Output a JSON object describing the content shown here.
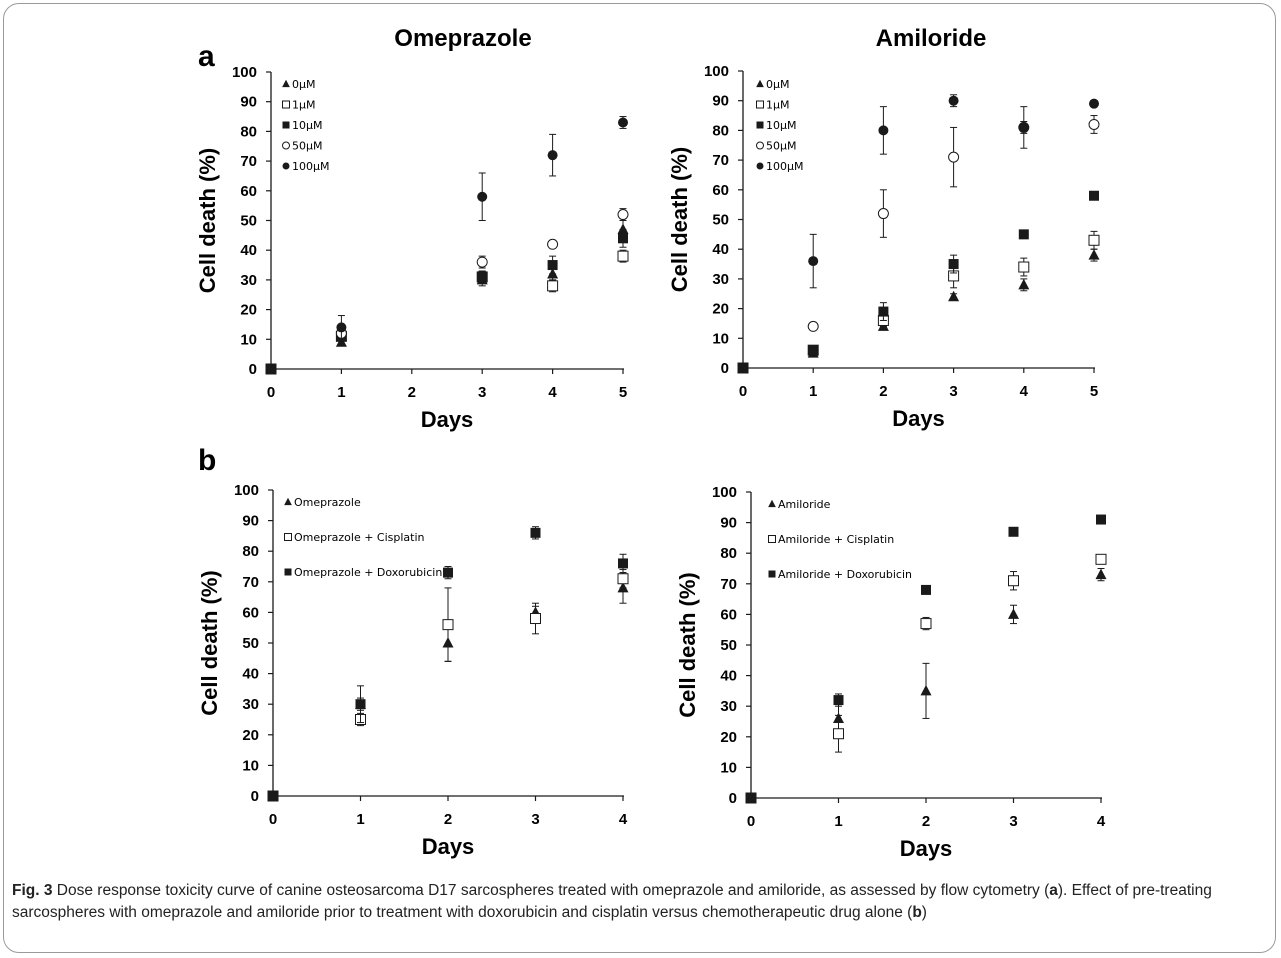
{
  "panel_labels": {
    "a": "a",
    "b": "b"
  },
  "caption": {
    "fig_label": "Fig. 3",
    "part1": " Dose response toxicity curve of canine osteosarcoma D17 sarcospheres treated with omeprazole and amiloride, as assessed by flow cytometry (",
    "ref_a": "a",
    "part2": "). Effect of pre-treating sarcospheres with omeprazole and amiloride prior to treatment with doxorubicin and cisplatin versus chemotherapeutic drug alone (",
    "ref_b": "b",
    "part3": ")"
  },
  "chart_data": [
    {
      "type": "scatter",
      "title": "Omeprazole",
      "xlabel": "Days",
      "ylabel": "Cell death (%)",
      "xlim": [
        0,
        5
      ],
      "ylim": [
        0,
        100
      ],
      "xticks": [
        "0",
        "1",
        "2",
        "3",
        "4",
        "5"
      ],
      "yticks": [
        "0",
        "10",
        "20",
        "30",
        "40",
        "50",
        "60",
        "70",
        "80",
        "90",
        "100"
      ],
      "error_bars": true,
      "legend_position": "top-left",
      "series": [
        {
          "name": "0µM",
          "marker": "filled-triangle",
          "x": [
            0,
            1,
            3,
            4,
            5
          ],
          "y": [
            0,
            9,
            30,
            32,
            47
          ],
          "err": [
            0,
            1,
            2,
            2,
            3
          ]
        },
        {
          "name": "1µM",
          "marker": "open-square",
          "x": [
            0,
            1,
            3,
            4,
            5
          ],
          "y": [
            0,
            11,
            31,
            28,
            38
          ],
          "err": [
            0,
            1,
            2,
            2,
            2
          ]
        },
        {
          "name": "10µM",
          "marker": "filled-square",
          "x": [
            0,
            1,
            3,
            4,
            5
          ],
          "y": [
            0,
            11,
            31,
            35,
            44
          ],
          "err": [
            0,
            1,
            2,
            3,
            3
          ]
        },
        {
          "name": "50µM",
          "marker": "open-circle",
          "x": [
            0,
            1,
            3,
            4,
            5
          ],
          "y": [
            0,
            12,
            36,
            42,
            52
          ],
          "err": [
            0,
            1,
            2,
            1,
            2
          ]
        },
        {
          "name": "100µM",
          "marker": "filled-circle",
          "x": [
            0,
            1,
            3,
            4,
            5
          ],
          "y": [
            0,
            14,
            58,
            72,
            83
          ],
          "err": [
            0,
            4,
            8,
            7,
            2
          ]
        }
      ]
    },
    {
      "type": "scatter",
      "title": "Amiloride",
      "xlabel": "Days",
      "ylabel": "Cell death (%)",
      "xlim": [
        0,
        5
      ],
      "ylim": [
        0,
        100
      ],
      "xticks": [
        "0",
        "1",
        "2",
        "3",
        "4",
        "5"
      ],
      "yticks": [
        "0",
        "10",
        "20",
        "30",
        "40",
        "50",
        "60",
        "70",
        "80",
        "90",
        "100"
      ],
      "error_bars": true,
      "legend_position": "top-left",
      "series": [
        {
          "name": "0µM",
          "marker": "filled-triangle",
          "x": [
            0,
            1,
            2,
            3,
            4,
            5
          ],
          "y": [
            0,
            5,
            14,
            24,
            28,
            38
          ],
          "err": [
            0,
            1,
            1,
            1,
            2,
            2
          ]
        },
        {
          "name": "1µM",
          "marker": "open-square",
          "x": [
            0,
            1,
            2,
            3,
            4,
            5
          ],
          "y": [
            0,
            6,
            16,
            31,
            34,
            43
          ],
          "err": [
            0,
            1,
            2,
            4,
            3,
            3
          ]
        },
        {
          "name": "10µM",
          "marker": "filled-square",
          "x": [
            0,
            1,
            2,
            3,
            4,
            5
          ],
          "y": [
            0,
            6,
            19,
            35,
            45,
            58
          ],
          "err": [
            0,
            1,
            3,
            3,
            1,
            1
          ]
        },
        {
          "name": "50µM",
          "marker": "open-circle",
          "x": [
            0,
            1,
            2,
            3,
            4,
            5
          ],
          "y": [
            0,
            14,
            52,
            71,
            81,
            82
          ],
          "err": [
            0,
            1,
            8,
            10,
            7,
            3
          ]
        },
        {
          "name": "100µM",
          "marker": "filled-circle",
          "x": [
            0,
            1,
            2,
            3,
            4,
            5
          ],
          "y": [
            0,
            36,
            80,
            90,
            81,
            89
          ],
          "err": [
            0,
            9,
            8,
            2,
            2,
            1
          ]
        }
      ]
    },
    {
      "type": "scatter",
      "title": "",
      "xlabel": "Days",
      "ylabel": "Cell death (%)",
      "xlim": [
        0,
        4
      ],
      "ylim": [
        0,
        100
      ],
      "xticks": [
        "0",
        "1",
        "2",
        "3",
        "4"
      ],
      "yticks": [
        "0",
        "10",
        "20",
        "30",
        "40",
        "50",
        "60",
        "70",
        "80",
        "90",
        "100"
      ],
      "error_bars": true,
      "legend_position": "top-left",
      "series": [
        {
          "name": "Omeprazole",
          "marker": "filled-triangle",
          "x": [
            0,
            1,
            2,
            3,
            4
          ],
          "y": [
            0,
            30,
            50,
            60,
            68
          ],
          "err": [
            0,
            2,
            6,
            2,
            5
          ]
        },
        {
          "name": "Omeprazole + Cisplatin",
          "marker": "open-square",
          "x": [
            0,
            1,
            2,
            3,
            4
          ],
          "y": [
            0,
            25,
            56,
            58,
            71
          ],
          "err": [
            0,
            2,
            12,
            5,
            3
          ]
        },
        {
          "name": "Omeprazole + Doxorubicin",
          "marker": "filled-square",
          "x": [
            0,
            1,
            2,
            3,
            4
          ],
          "y": [
            0,
            30,
            73,
            86,
            76
          ],
          "err": [
            0,
            6,
            2,
            2,
            3
          ]
        }
      ]
    },
    {
      "type": "scatter",
      "title": "",
      "xlabel": "Days",
      "ylabel": "Cell death (%)",
      "xlim": [
        0,
        4
      ],
      "ylim": [
        0,
        100
      ],
      "xticks": [
        "0",
        "1",
        "2",
        "3",
        "4"
      ],
      "yticks": [
        "0",
        "10",
        "20",
        "30",
        "40",
        "50",
        "60",
        "70",
        "80",
        "90",
        "100"
      ],
      "error_bars": true,
      "legend_position": "top-left",
      "series": [
        {
          "name": "Amiloride",
          "marker": "filled-triangle",
          "x": [
            0,
            1,
            2,
            3,
            4
          ],
          "y": [
            0,
            26,
            35,
            60,
            73
          ],
          "err": [
            0,
            6,
            9,
            3,
            2
          ]
        },
        {
          "name": "Amiloride + Cisplatin",
          "marker": "open-square",
          "x": [
            0,
            1,
            2,
            3,
            4
          ],
          "y": [
            0,
            21,
            57,
            71,
            78
          ],
          "err": [
            0,
            6,
            2,
            3,
            1
          ]
        },
        {
          "name": "Amiloride + Doxorubicin",
          "marker": "filled-square",
          "x": [
            0,
            1,
            2,
            3,
            4
          ],
          "y": [
            0,
            32,
            68,
            87,
            91
          ],
          "err": [
            0,
            2,
            1,
            1,
            1
          ]
        }
      ]
    }
  ]
}
